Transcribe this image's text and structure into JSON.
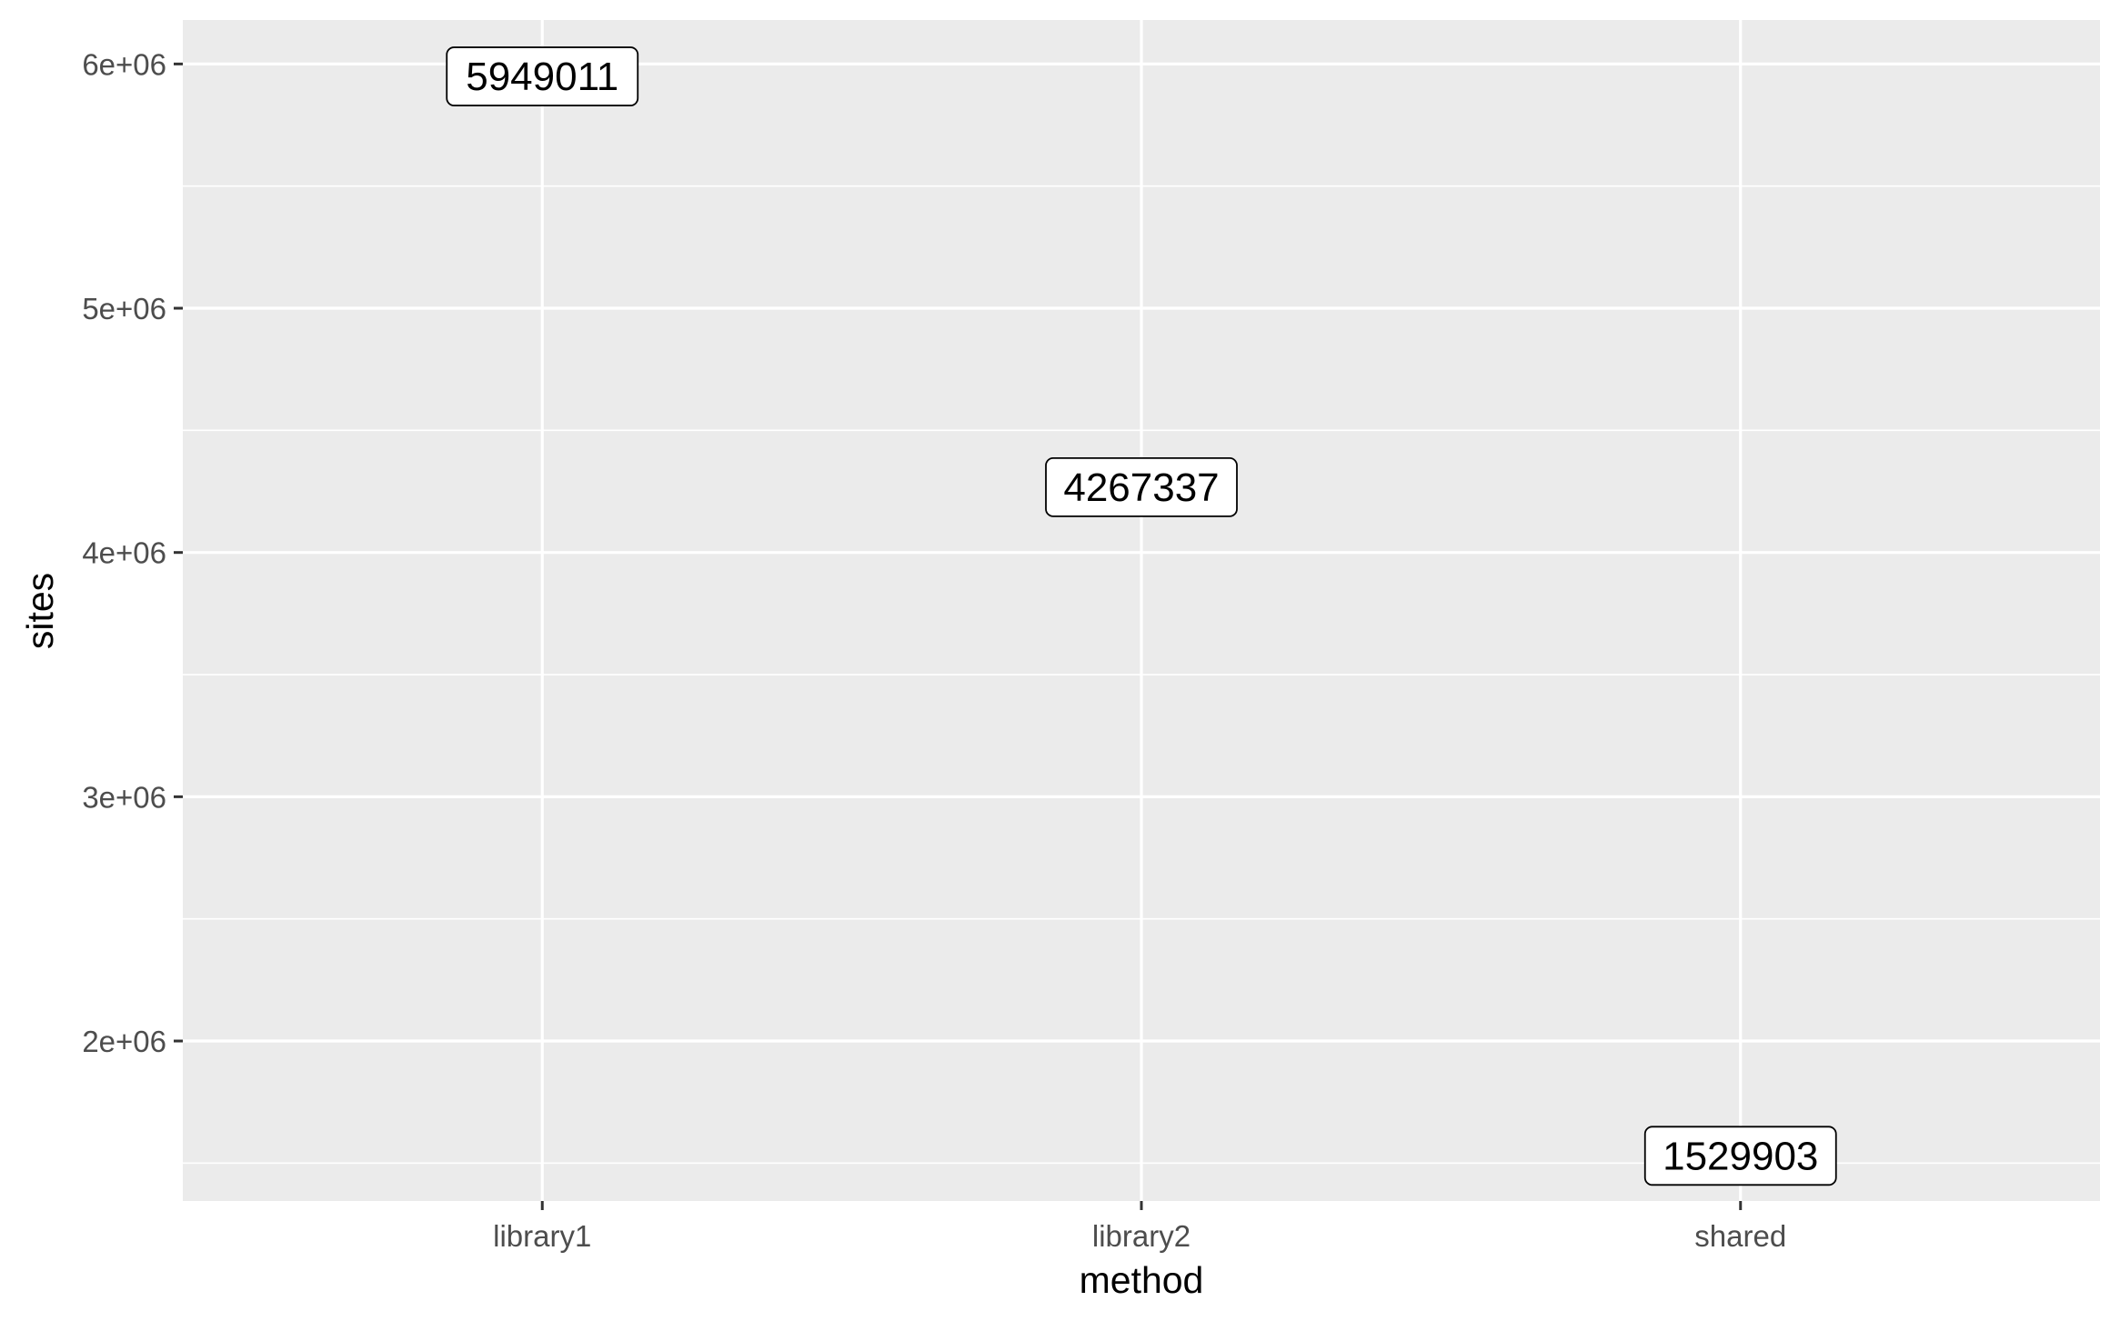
{
  "chart_data": {
    "type": "scatter",
    "categories": [
      "library1",
      "library2",
      "shared"
    ],
    "values": [
      5949011,
      4267337,
      1529903
    ],
    "labels": [
      "5949011",
      "4267337",
      "1529903"
    ],
    "xlabel": "method",
    "ylabel": "sites",
    "ylim": [
      1345000,
      6180000
    ],
    "yticks": [
      2000000,
      3000000,
      4000000,
      5000000,
      6000000
    ],
    "ytick_labels": [
      "2e+06",
      "3e+06",
      "4e+06",
      "5e+06",
      "6e+06"
    ],
    "grid": true,
    "panel_color": "#ebebeb",
    "grid_color": "#ffffff"
  }
}
